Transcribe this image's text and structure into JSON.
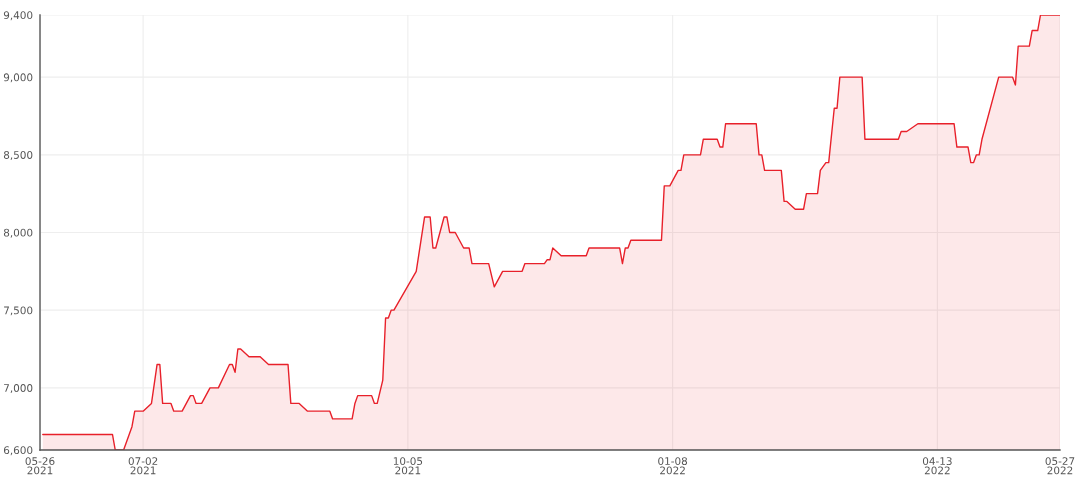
{
  "chart_data": {
    "type": "area",
    "x": [
      "2021-05-27",
      "2021-06-21",
      "2021-06-22",
      "2021-06-25",
      "2021-06-28",
      "2021-06-29",
      "2021-07-02",
      "2021-07-05",
      "2021-07-07",
      "2021-07-08",
      "2021-07-09",
      "2021-07-12",
      "2021-07-13",
      "2021-07-16",
      "2021-07-19",
      "2021-07-20",
      "2021-07-21",
      "2021-07-23",
      "2021-07-26",
      "2021-07-29",
      "2021-08-02",
      "2021-08-03",
      "2021-08-04",
      "2021-08-05",
      "2021-08-06",
      "2021-08-09",
      "2021-08-13",
      "2021-08-16",
      "2021-08-23",
      "2021-08-24",
      "2021-08-27",
      "2021-08-30",
      "2021-09-07",
      "2021-09-08",
      "2021-09-15",
      "2021-09-16",
      "2021-09-17",
      "2021-09-22",
      "2021-09-23",
      "2021-09-24",
      "2021-09-26",
      "2021-09-27",
      "2021-09-28",
      "2021-09-29",
      "2021-09-30",
      "2021-10-08",
      "2021-10-11",
      "2021-10-13",
      "2021-10-14",
      "2021-10-15",
      "2021-10-18",
      "2021-10-19",
      "2021-10-20",
      "2021-10-22",
      "2021-10-25",
      "2021-10-27",
      "2021-10-28",
      "2021-11-03",
      "2021-11-05",
      "2021-11-08",
      "2021-11-15",
      "2021-11-16",
      "2021-11-23",
      "2021-11-24",
      "2021-11-25",
      "2021-11-26",
      "2021-11-29",
      "2021-12-08",
      "2021-12-09",
      "2021-12-20",
      "2021-12-21",
      "2021-12-22",
      "2021-12-23",
      "2021-12-24",
      "2022-01-04",
      "2022-01-05",
      "2022-01-07",
      "2022-01-10",
      "2022-01-11",
      "2022-01-12",
      "2022-01-18",
      "2022-01-19",
      "2022-01-24",
      "2022-01-25",
      "2022-01-26",
      "2022-01-27",
      "2022-02-07",
      "2022-02-08",
      "2022-02-09",
      "2022-02-10",
      "2022-02-16",
      "2022-02-17",
      "2022-02-18",
      "2022-02-21",
      "2022-02-24",
      "2022-02-25",
      "2022-03-01",
      "2022-03-02",
      "2022-03-04",
      "2022-03-05",
      "2022-03-07",
      "2022-03-08",
      "2022-03-09",
      "2022-03-17",
      "2022-03-18",
      "2022-03-30",
      "2022-03-31",
      "2022-04-02",
      "2022-04-06",
      "2022-04-19",
      "2022-04-20",
      "2022-04-24",
      "2022-04-25",
      "2022-04-26",
      "2022-04-27",
      "2022-04-28",
      "2022-04-29",
      "2022-05-05",
      "2022-05-10",
      "2022-05-11",
      "2022-05-12",
      "2022-05-16",
      "2022-05-17",
      "2022-05-19",
      "2022-05-20",
      "2022-05-27"
    ],
    "series": [
      {
        "color": "#e8202a",
        "values": [
          6700,
          6700,
          6600,
          6600,
          6750,
          6850,
          6850,
          6900,
          7150,
          7150,
          6900,
          6900,
          6850,
          6850,
          6950,
          6950,
          6900,
          6900,
          7000,
          7000,
          7150,
          7150,
          7100,
          7250,
          7250,
          7200,
          7200,
          7150,
          7150,
          6900,
          6900,
          6850,
          6850,
          6800,
          6800,
          6900,
          6950,
          6950,
          6900,
          6900,
          7050,
          7450,
          7450,
          7500,
          7500,
          7750,
          8100,
          8100,
          7900,
          7900,
          8100,
          8100,
          8000,
          8000,
          7900,
          7900,
          7800,
          7800,
          7650,
          7750,
          7750,
          7800,
          7800,
          7825,
          7825,
          7900,
          7850,
          7850,
          7900,
          7900,
          7800,
          7900,
          7900,
          7950,
          7950,
          8300,
          8300,
          8400,
          8400,
          8500,
          8500,
          8600,
          8600,
          8550,
          8550,
          8700,
          8700,
          8500,
          8500,
          8400,
          8400,
          8200,
          8200,
          8150,
          8150,
          8250,
          8250,
          8400,
          8450,
          8450,
          8800,
          8800,
          9000,
          9000,
          8600,
          8600,
          8650,
          8650,
          8700,
          8700,
          8550,
          8550,
          8450,
          8450,
          8500,
          8500,
          8600,
          9000,
          9000,
          8950,
          9200,
          9200,
          9300,
          9300,
          9400,
          9400
        ]
      }
    ],
    "xlim": [
      "2021-05-26",
      "2022-05-27"
    ],
    "xticks": [
      {
        "value": "2021-05-26",
        "label": "05-26\n2021"
      },
      {
        "value": "2021-07-02",
        "label": "07-02\n2021"
      },
      {
        "value": "2021-10-05",
        "label": "10-05\n2021"
      },
      {
        "value": "2022-01-08",
        "label": "01-08\n2022"
      },
      {
        "value": "2022-04-13",
        "label": "04-13\n2022"
      },
      {
        "value": "2022-05-27",
        "label": "05-27\n2022"
      }
    ],
    "ylim": [
      6600,
      9400
    ],
    "yticks": [
      {
        "value": 6600,
        "label": "6,600"
      },
      {
        "value": 7000,
        "label": "7,000"
      },
      {
        "value": 7500,
        "label": "7,500"
      },
      {
        "value": 8000,
        "label": "8,000"
      },
      {
        "value": 8500,
        "label": "8,500"
      },
      {
        "value": 9000,
        "label": "9,000"
      },
      {
        "value": 9400,
        "label": "9,400"
      }
    ],
    "grid": true
  }
}
